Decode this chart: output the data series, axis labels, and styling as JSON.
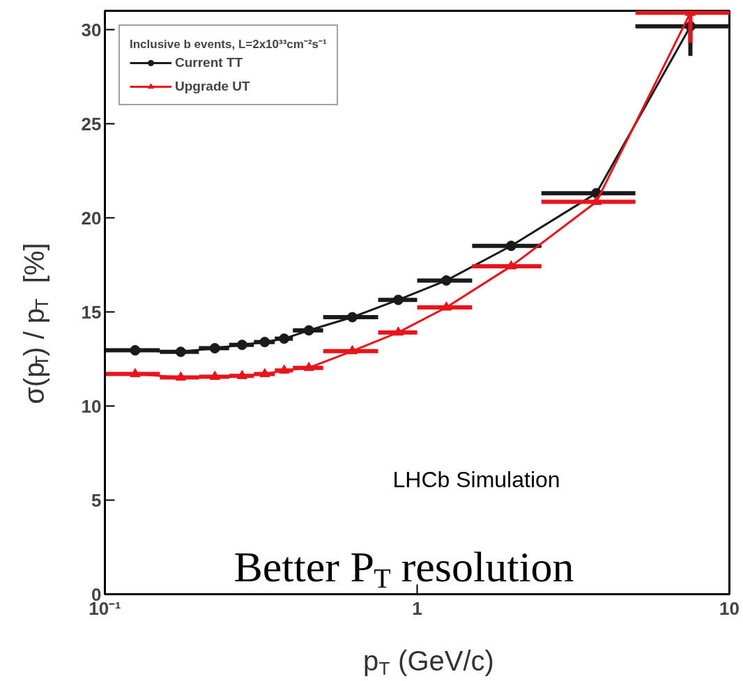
{
  "chart_data": {
    "type": "line",
    "xlabel": "p$_{T}$ (GeV/c)",
    "ylabel": "σ(p$_{T}$) / p$_{T}$  [%]",
    "legend_title": "Inclusive b events, L=2x10³³cm⁻²s⁻¹",
    "log": "x",
    "xlim": [
      0.1,
      10
    ],
    "xticks": [
      {
        "value": 0.1,
        "label": "10⁻¹"
      },
      1,
      10
    ],
    "ylim": [
      0,
      31
    ],
    "yticks": [
      0,
      5,
      10,
      15,
      20,
      25,
      30
    ],
    "grid": false,
    "legend": "top left",
    "series": [
      {
        "name": "Current TT",
        "color": "#1a1a1a",
        "marker": "circle",
        "x": [
          0.125,
          0.175,
          0.225,
          0.275,
          0.325,
          0.375,
          0.45,
          0.62,
          0.87,
          1.24,
          2.0,
          3.75,
          7.5
        ],
        "values": [
          12.96,
          12.88,
          13.07,
          13.25,
          13.4,
          13.58,
          14.02,
          14.72,
          15.64,
          16.67,
          18.51,
          21.31,
          30.18
        ],
        "xerrors": [
          [
            0.1,
            0.15
          ],
          [
            0.15,
            0.2
          ],
          [
            0.2,
            0.25
          ],
          [
            0.25,
            0.3
          ],
          [
            0.3,
            0.35
          ],
          [
            0.35,
            0.4
          ],
          [
            0.4,
            0.5
          ],
          [
            0.5,
            0.75
          ],
          [
            0.75,
            1.0
          ],
          [
            1.0,
            1.5
          ],
          [
            1.5,
            2.5
          ],
          [
            2.5,
            5
          ],
          [
            5,
            10
          ]
        ],
        "errors": [
          null,
          null,
          null,
          null,
          null,
          null,
          null,
          null,
          null,
          null,
          null,
          null,
          [
            28.6,
            30.18
          ]
        ]
      },
      {
        "name": "Upgrade UT",
        "color": "#e8141c",
        "marker": "triangle",
        "x": [
          0.125,
          0.175,
          0.225,
          0.275,
          0.325,
          0.375,
          0.45,
          0.62,
          0.87,
          1.24,
          2.0,
          3.75,
          7.5
        ],
        "values": [
          11.7,
          11.52,
          11.56,
          11.6,
          11.7,
          11.89,
          12.03,
          12.92,
          13.91,
          15.24,
          17.43,
          20.85,
          30.9
        ],
        "xerrors": [
          [
            0.1,
            0.15
          ],
          [
            0.15,
            0.2
          ],
          [
            0.2,
            0.25
          ],
          [
            0.25,
            0.3
          ],
          [
            0.3,
            0.35
          ],
          [
            0.35,
            0.4
          ],
          [
            0.4,
            0.5
          ],
          [
            0.5,
            0.75
          ],
          [
            0.75,
            1.0
          ],
          [
            1.0,
            1.5
          ],
          [
            1.5,
            2.5
          ],
          [
            2.5,
            5
          ],
          [
            5,
            10
          ]
        ],
        "errors": [
          null,
          null,
          null,
          null,
          null,
          null,
          null,
          null,
          null,
          null,
          null,
          null,
          [
            29.3,
            30.9
          ]
        ]
      }
    ],
    "annotations": [
      "LHCb Simulation",
      "Better P$_{T}$ resolution"
    ]
  }
}
